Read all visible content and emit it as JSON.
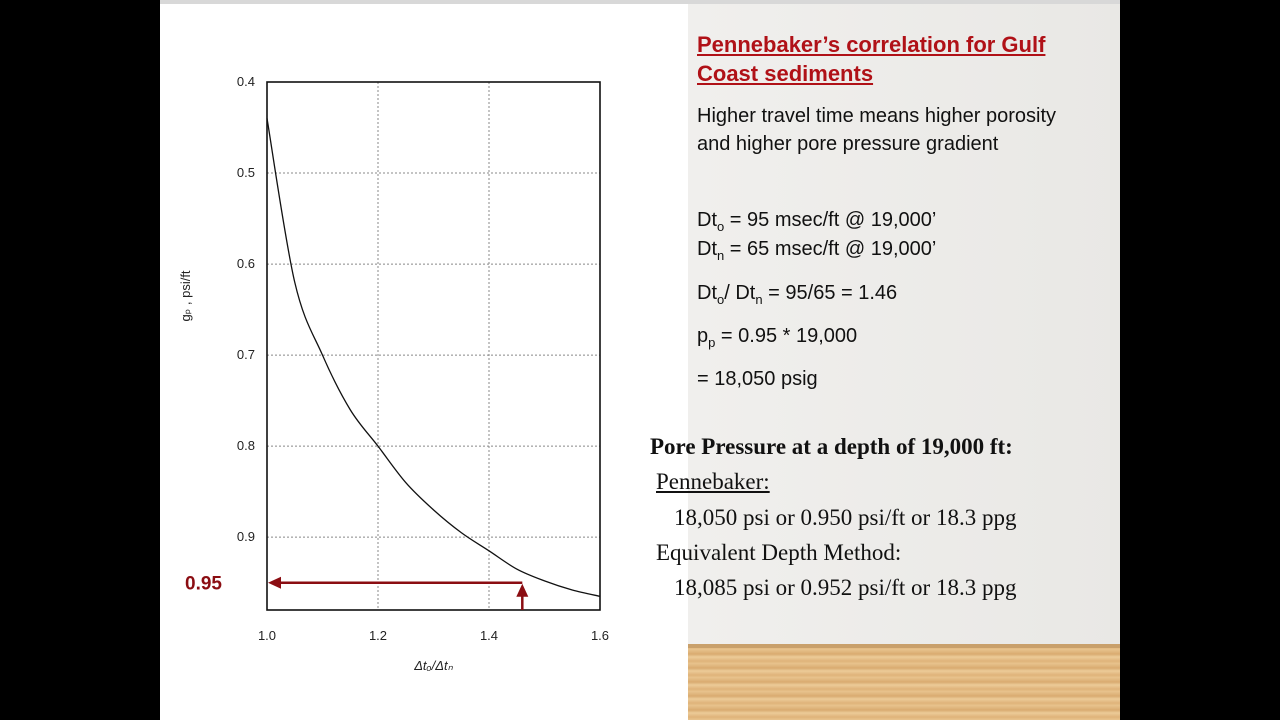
{
  "slide": {
    "title": "Pennebaker’s correlation for Gulf Coast sediments",
    "description": "Higher travel time means higher porosity and higher pore pressure gradient",
    "calculations": {
      "dto_prefix": "Dt",
      "dto_sub": "o",
      "dto_value": " = 95 msec/ft @ 19,000’",
      "dtn_prefix": "Dt",
      "dtn_sub": "n",
      "dtn_value": " = 65 msec/ft @ 19,000’",
      "ratio_a": "Dt",
      "ratio_a_sub": "o",
      "ratio_mid": "/ Dt",
      "ratio_b_sub": "n",
      "ratio_value": " = 95/65 = 1.46",
      "pp_prefix": "p",
      "pp_sub": "p",
      "pp_value": " = 0.95 * 19,000",
      "result": "= 18,050 psig"
    },
    "summary": {
      "heading": "Pore Pressure at a depth of  19,000 ft:",
      "method1_label": "Pennebaker: ",
      "method1_value": "18,050 psi  or  0.950 psi/ft  or  18.3 ppg",
      "method2_label": "Equivalent Depth Method:",
      "method2_value": "18,085 psi  or  0.952 psi/ft  or  18.3 ppg"
    }
  },
  "colors": {
    "title": "#b01117",
    "annotation": "#8b0d12",
    "curve": "#111111"
  },
  "chart_data": {
    "type": "line",
    "title": "",
    "xlabel": "Δtₒ/Δtₙ",
    "ylabel": "gₚ , psi/ft",
    "xlim": [
      1.0,
      1.6
    ],
    "ylim": [
      0.4,
      0.98
    ],
    "y_inverted": true,
    "grid": true,
    "x_ticks": [
      "1.0",
      "1.2",
      "1.4",
      "1.6"
    ],
    "y_ticks": [
      "0.4",
      "0.5",
      "0.6",
      "0.7",
      "0.8",
      "0.9"
    ],
    "series": [
      {
        "x": [
          1.0,
          1.05,
          1.1,
          1.15,
          1.2,
          1.25,
          1.3,
          1.35,
          1.4,
          1.45,
          1.5,
          1.55,
          1.6
        ],
        "y": [
          0.44,
          0.62,
          0.7,
          0.76,
          0.8,
          0.84,
          0.87,
          0.895,
          0.915,
          0.935,
          0.948,
          0.958,
          0.965
        ]
      }
    ],
    "annotations": [
      {
        "label": "0.95",
        "x": 1.46,
        "y": 0.95
      }
    ]
  }
}
